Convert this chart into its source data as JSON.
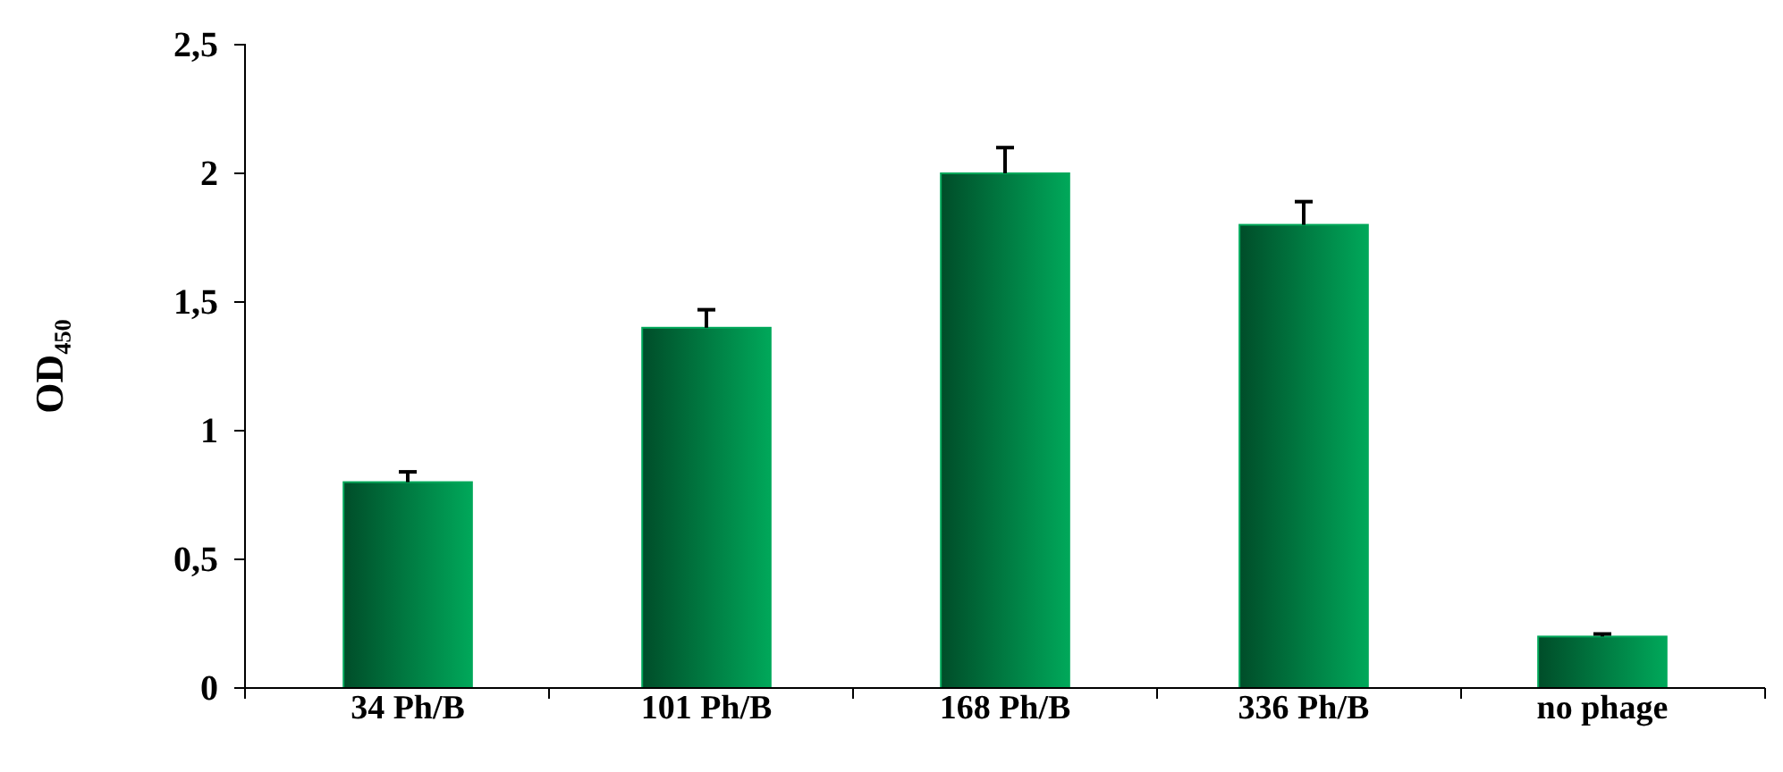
{
  "chart_data": {
    "type": "bar",
    "ylabel": "OD₄₅₀",
    "categories": [
      "34 Ph/B",
      "101 Ph/B",
      "168 Ph/B",
      "336 Ph/B",
      "no phage"
    ],
    "values": [
      0.8,
      1.4,
      2.0,
      1.8,
      0.2
    ],
    "errors": [
      [
        0.8,
        0.84
      ],
      [
        1.4,
        1.47
      ],
      [
        2.0,
        2.1
      ],
      [
        1.8,
        1.89
      ],
      [
        0.2,
        0.21
      ]
    ],
    "color": "#00a85a",
    "ylim": [
      0,
      2.5
    ],
    "yticks": [
      0,
      {
        "value": 0.5,
        "label": "0,5"
      },
      1,
      {
        "value": 1.5,
        "label": "1,5"
      },
      2,
      {
        "value": 2.5,
        "label": "2,5"
      }
    ],
    "grid": false
  }
}
